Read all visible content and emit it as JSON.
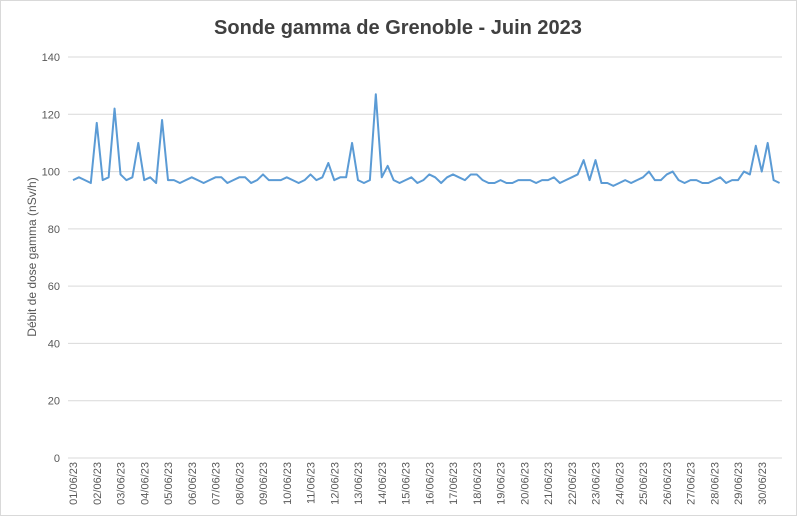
{
  "chart_data": {
    "type": "line",
    "title": "Sonde gamma de Grenoble - Juin 2023",
    "y_label": "Débit de dose gamma (nSv/h)",
    "categories": [
      "01/06/23",
      null,
      null,
      null,
      "02/06/23",
      null,
      null,
      null,
      "03/06/23",
      null,
      null,
      null,
      "04/06/23",
      null,
      null,
      null,
      "05/06/23",
      null,
      null,
      null,
      "06/06/23",
      null,
      null,
      null,
      "07/06/23",
      null,
      null,
      null,
      "08/06/23",
      null,
      null,
      null,
      "09/06/23",
      null,
      null,
      null,
      "10/06/23",
      null,
      null,
      null,
      "11/06/23",
      null,
      null,
      null,
      "12/06/23",
      null,
      null,
      null,
      "13/06/23",
      null,
      null,
      null,
      "14/06/23",
      null,
      null,
      null,
      "15/06/23",
      null,
      null,
      null,
      "16/06/23",
      null,
      null,
      null,
      "17/06/23",
      null,
      null,
      null,
      "18/06/23",
      null,
      null,
      null,
      "19/06/23",
      null,
      null,
      null,
      "20/06/23",
      null,
      null,
      null,
      "21/06/23",
      null,
      null,
      null,
      "22/06/23",
      null,
      null,
      null,
      "23/06/23",
      null,
      null,
      null,
      "24/06/23",
      null,
      null,
      null,
      "25/06/23",
      null,
      null,
      null,
      "26/06/23",
      null,
      null,
      null,
      "27/06/23",
      null,
      null,
      null,
      "28/06/23",
      null,
      null,
      null,
      "29/06/23",
      null,
      null,
      null,
      "30/06/23",
      null,
      null,
      null
    ],
    "series": [
      {
        "name": "Sonde gamma",
        "color": "#5b9bd5",
        "values": [
          97,
          98,
          97,
          96,
          117,
          97,
          98,
          122,
          99,
          97,
          98,
          110,
          97,
          98,
          96,
          118,
          97,
          97,
          96,
          97,
          98,
          97,
          96,
          97,
          98,
          98,
          96,
          97,
          98,
          98,
          96,
          97,
          99,
          97,
          97,
          97,
          98,
          97,
          96,
          97,
          99,
          97,
          98,
          103,
          97,
          98,
          98,
          110,
          97,
          96,
          97,
          127,
          98,
          102,
          97,
          96,
          97,
          98,
          96,
          97,
          99,
          98,
          96,
          98,
          99,
          98,
          97,
          99,
          99,
          97,
          96,
          96,
          97,
          96,
          96,
          97,
          97,
          97,
          96,
          97,
          97,
          98,
          96,
          97,
          98,
          99,
          104,
          97,
          104,
          96,
          96,
          95,
          96,
          97,
          96,
          97,
          98,
          100,
          97,
          97,
          99,
          100,
          97,
          96,
          97,
          97,
          96,
          96,
          97,
          98,
          96,
          97,
          97,
          100,
          99,
          109,
          100,
          110,
          97,
          96
        ]
      }
    ],
    "ylim": [
      0,
      140
    ],
    "yticks": [
      0,
      20,
      40,
      60,
      80,
      100,
      120,
      140
    ],
    "grid": true
  }
}
